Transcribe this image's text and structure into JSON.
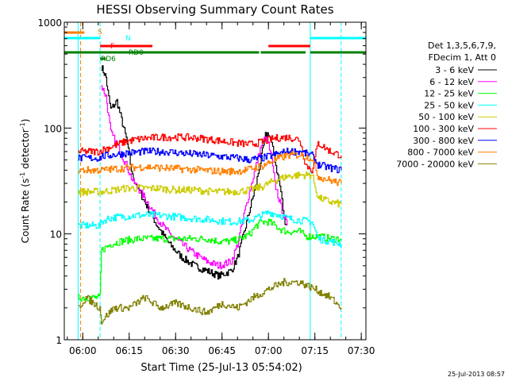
{
  "chart_data": {
    "type": "line",
    "title": "HESSI Observing Summary Count Rates",
    "xlabel": "Start Time (25-Jul-13 05:54:02)",
    "ylabel": "Count Rate (s⁻¹ detector⁻¹)",
    "ylabel_parts": {
      "main": "Count Rate (s",
      "exp1": "-1",
      "mid": " detector",
      "exp2": "-1",
      "end": ")"
    },
    "y_scale": "log",
    "ylim": [
      1,
      1000
    ],
    "xlim": [
      "05:54:02",
      "07:31:30"
    ],
    "x_ticks": [
      "06:00",
      "06:15",
      "06:30",
      "06:45",
      "07:00",
      "07:15",
      "07:30"
    ],
    "x_tick_values": [
      360,
      375,
      390,
      405,
      420,
      435,
      450
    ],
    "x_range_minutes": [
      354.03,
      451.5
    ],
    "y_ticks": [
      {
        "label": "1",
        "value": 1
      },
      {
        "label": "10",
        "value": 10
      },
      {
        "label": "100",
        "value": 100
      },
      {
        "label": "1000",
        "value": 1000
      }
    ],
    "legend_header": [
      "Det 1,3,5,6,7,9,",
      "FDecim 1, Att 0"
    ],
    "legend_placement": "right",
    "timestamp": "25-Jul-2013 08:57",
    "series": [
      {
        "name": "3 - 6 keV",
        "color": "#000000",
        "x": [
          366,
          367.5,
          368,
          369,
          371,
          374,
          376,
          380,
          384,
          388,
          392,
          396,
          400,
          404,
          408,
          410,
          412,
          416,
          418,
          419,
          420,
          421,
          422,
          424,
          425,
          426
        ],
        "y": [
          380,
          300,
          220,
          150,
          180,
          80,
          35,
          20,
          12,
          8,
          6,
          5,
          4.5,
          4,
          4.5,
          6,
          10,
          30,
          60,
          85,
          90,
          70,
          50,
          25,
          14,
          12
        ]
      },
      {
        "name": "6 - 12 keV",
        "color": "#ff00ff",
        "x": [
          366,
          367.5,
          368,
          369,
          371,
          374,
          376,
          380,
          384,
          388,
          392,
          396,
          400,
          404,
          408,
          410,
          412,
          416,
          418,
          419,
          420,
          421,
          422,
          424,
          426
        ],
        "y": [
          250,
          200,
          150,
          90,
          70,
          45,
          32,
          22,
          14,
          10,
          8,
          6.5,
          5.5,
          5,
          5.5,
          8,
          15,
          45,
          75,
          80,
          70,
          50,
          30,
          18,
          12
        ]
      },
      {
        "name": "12 - 25 keV",
        "color": "#00ff00",
        "x": [
          358.5,
          361,
          365.5,
          366,
          369,
          372,
          378,
          384,
          390,
          396,
          400,
          404,
          408,
          411,
          414,
          416,
          418,
          420,
          422,
          424,
          426,
          430,
          432,
          436,
          440,
          443.5
        ],
        "y": [
          2.5,
          2.5,
          2.5,
          7,
          8,
          8.5,
          9,
          9,
          9,
          9,
          9,
          8.5,
          8.5,
          9,
          10,
          12,
          13,
          13,
          12,
          11,
          10.5,
          10.5,
          9.5,
          9.5,
          9,
          9
        ]
      },
      {
        "name": "25 - 50 keV",
        "color": "#00ffff",
        "x": [
          358.5,
          361,
          365.5,
          366,
          368,
          372,
          378,
          384,
          390,
          396,
          402,
          408,
          414,
          418,
          420,
          422,
          424,
          426,
          430,
          434,
          436,
          440,
          443.5
        ],
        "y": [
          12,
          12,
          12,
          13,
          14,
          14.5,
          15,
          15,
          14.5,
          14,
          13.5,
          13,
          13.5,
          15,
          16,
          15.5,
          15,
          14,
          13.5,
          13,
          9,
          8.5,
          8
        ]
      },
      {
        "name": "50 - 100 keV",
        "color": "#cccc00",
        "x": [
          358.5,
          365.5,
          366,
          370,
          374,
          378,
          384,
          390,
          396,
          402,
          408,
          414,
          418,
          422,
          426,
          430,
          434,
          436,
          440,
          443.5
        ],
        "y": [
          25,
          25,
          25,
          26,
          27,
          27,
          27,
          26,
          26,
          25,
          25,
          26,
          28,
          32,
          35,
          36,
          36,
          22,
          20,
          19
        ]
      },
      {
        "name": "100 - 300 keV",
        "color": "#ff0000",
        "x": [
          358.5,
          365.5,
          366,
          370,
          374,
          380,
          386,
          392,
          398,
          404,
          410,
          414,
          418,
          422,
          426,
          430,
          432,
          434,
          436,
          440,
          443.5
        ],
        "y": [
          60,
          60,
          62,
          68,
          75,
          80,
          82,
          82,
          80,
          76,
          72,
          70,
          74,
          80,
          82,
          78,
          45,
          40,
          72,
          60,
          55
        ]
      },
      {
        "name": "300 - 800 keV",
        "color": "#0000ff",
        "x": [
          358.5,
          365.5,
          366,
          370,
          374,
          380,
          386,
          392,
          398,
          404,
          410,
          414,
          418,
          422,
          426,
          430,
          434,
          436,
          440,
          443.5
        ],
        "y": [
          52,
          52,
          54,
          56,
          58,
          60,
          60,
          58,
          56,
          54,
          52,
          50,
          52,
          56,
          60,
          60,
          55,
          45,
          42,
          40
        ]
      },
      {
        "name": "800 - 7000 keV",
        "color": "#ff8000",
        "x": [
          358.5,
          365.5,
          366,
          370,
          374,
          380,
          386,
          392,
          398,
          404,
          410,
          414,
          418,
          422,
          426,
          430,
          434,
          436,
          440,
          443.5
        ],
        "y": [
          40,
          40,
          40,
          41,
          42,
          43,
          42,
          41,
          40,
          39,
          39,
          41,
          44,
          50,
          55,
          56,
          52,
          35,
          32,
          30
        ]
      },
      {
        "name": "7000 - 20000 keV",
        "color": "#808000",
        "x": [
          358.5,
          361,
          365.5,
          366,
          370,
          375,
          380,
          385,
          390,
          395,
          400,
          405,
          410,
          415,
          420,
          425,
          430,
          435,
          440,
          443.5
        ],
        "y": [
          2,
          2.5,
          2,
          1.5,
          2,
          2,
          2.5,
          2,
          2.2,
          2,
          1.8,
          2.2,
          2,
          2.5,
          3,
          3.5,
          3.5,
          3,
          2.5,
          2
        ]
      }
    ],
    "flag_bars": [
      {
        "label": "S",
        "color": "#ff8000",
        "segments": [
          [
            354.03,
            360.5
          ]
        ]
      },
      {
        "label": "N",
        "color": "#00ffff",
        "segments": [
          [
            354.03,
            365.5
          ],
          [
            433.5,
            451.5
          ]
        ]
      },
      {
        "label": "F",
        "color": "#ff0000",
        "segments": [
          [
            365.6,
            382.5
          ],
          [
            420,
            433.5
          ]
        ]
      },
      {
        "label": "RD6",
        "color": "#008000",
        "segments": [
          [
            365.6,
            367.5
          ]
        ]
      },
      {
        "label": "RD0",
        "color": "#008000",
        "segments": [
          [
            354.03,
            417
          ],
          [
            417.5,
            432
          ],
          [
            433.5,
            451.5
          ]
        ]
      }
    ],
    "vertical_markers": [
      {
        "x": 359.3,
        "color": "#ff8000",
        "style": "dashed"
      },
      {
        "x": 358.5,
        "color": "#00ffff",
        "style": "solid"
      },
      {
        "x": 365.6,
        "color": "#00ffff",
        "style": "dashed"
      },
      {
        "x": 433.5,
        "color": "#00ffff",
        "style": "solid"
      },
      {
        "x": 443.5,
        "color": "#00ffff",
        "style": "dashed"
      }
    ]
  }
}
